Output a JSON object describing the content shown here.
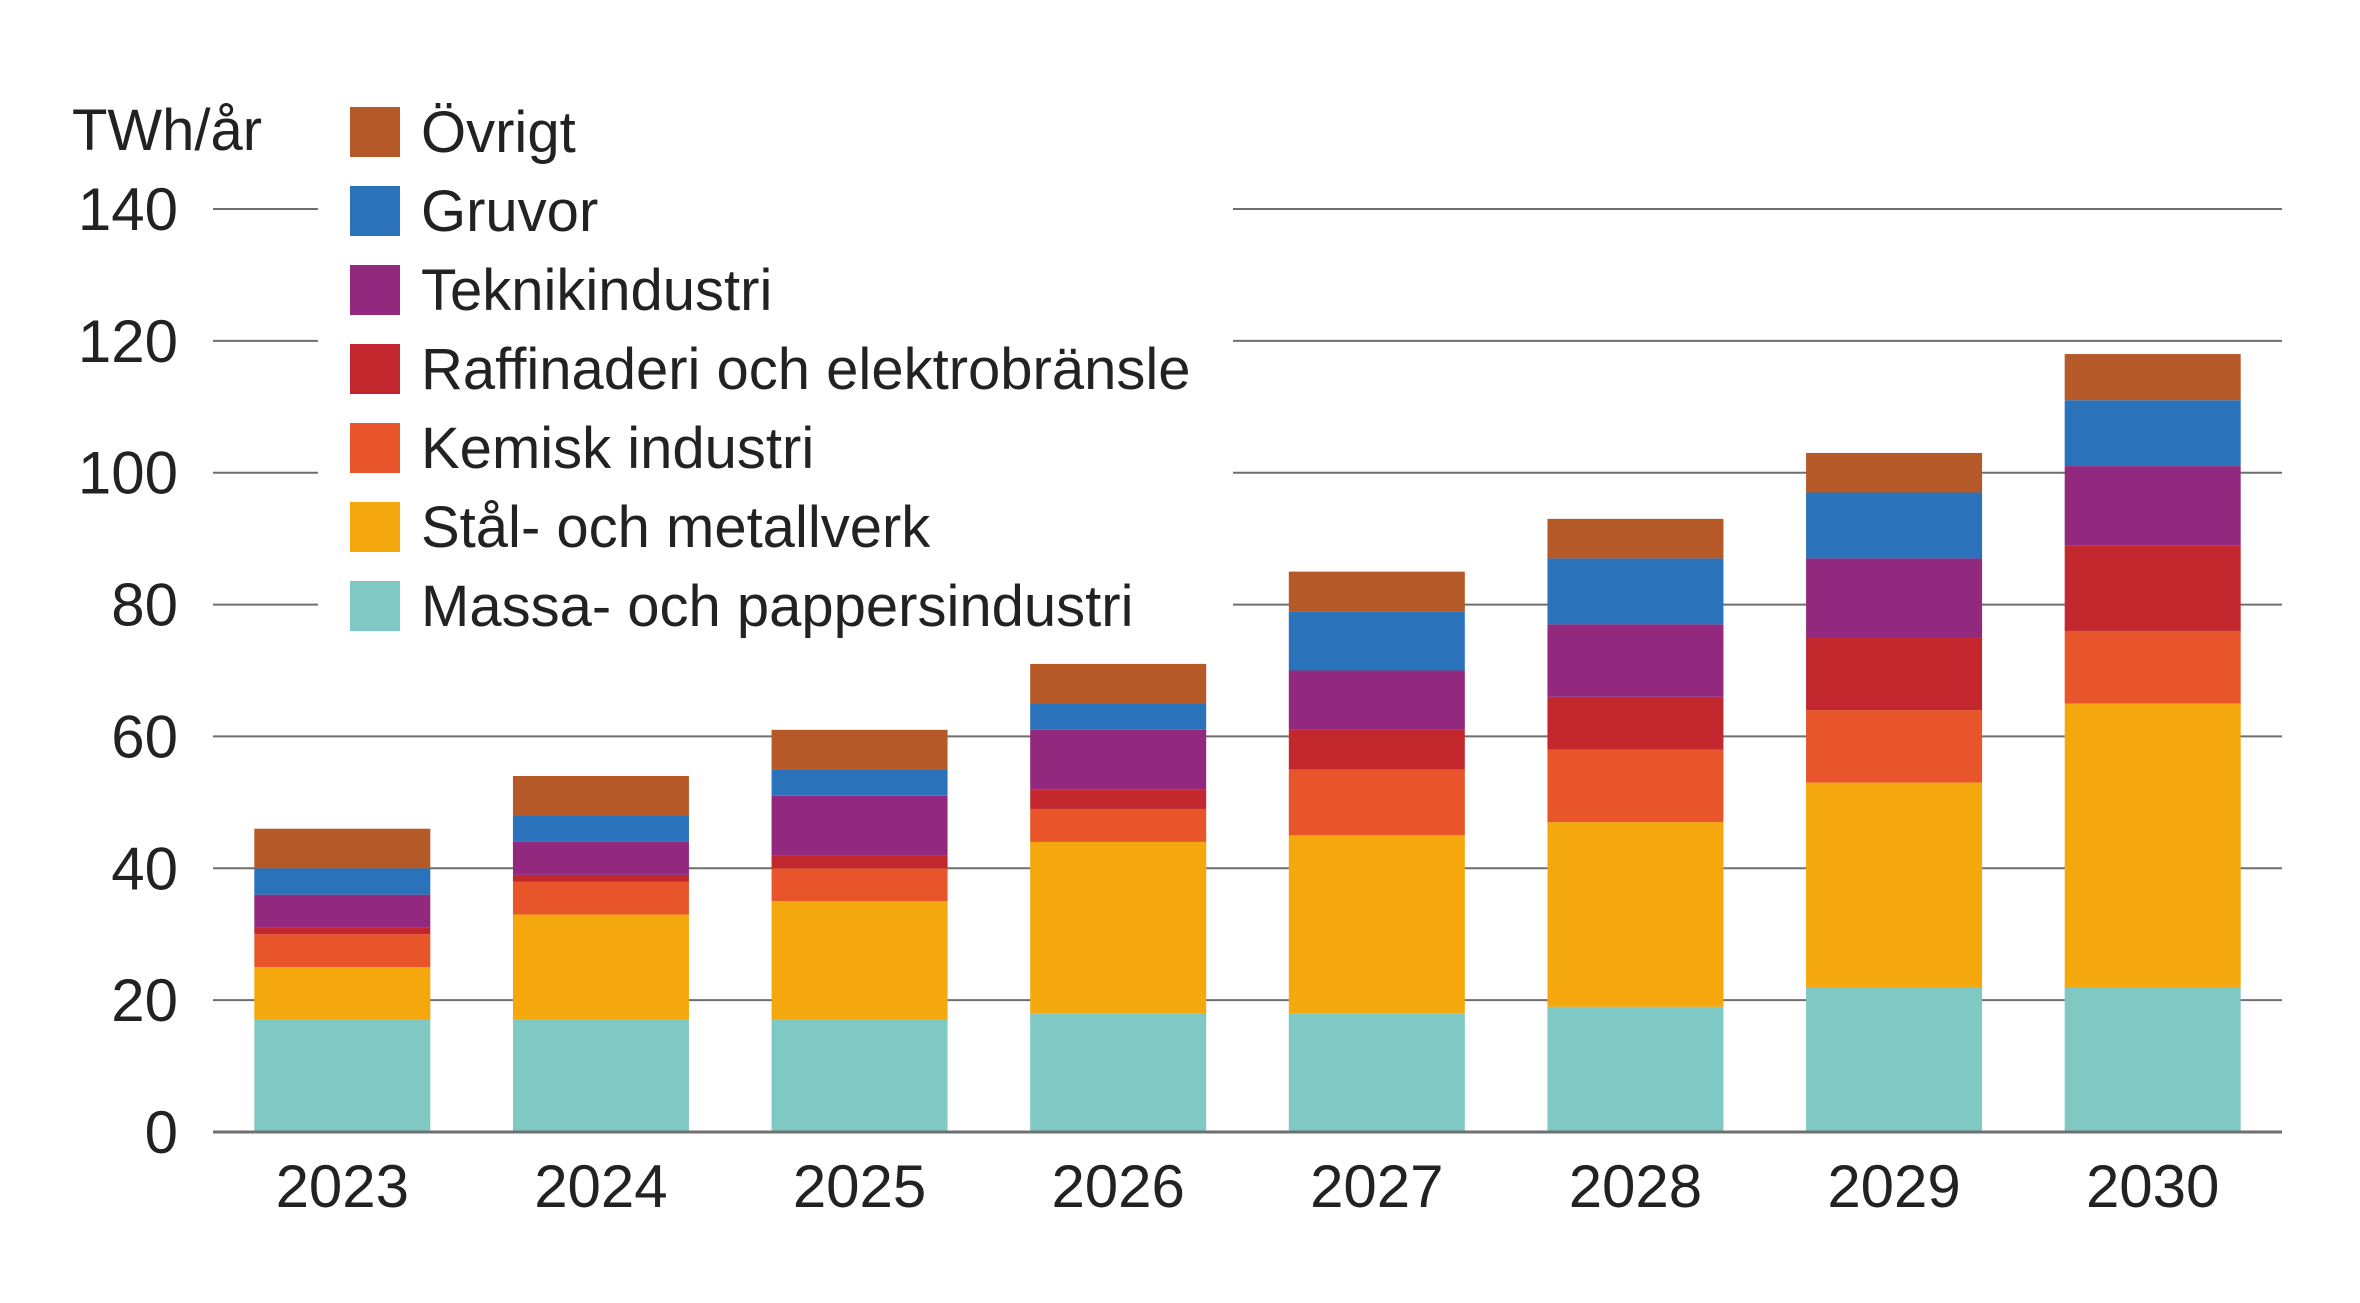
{
  "chart_data": {
    "type": "bar",
    "stacked": true,
    "unit_label": "TWh/år",
    "categories": [
      "2023",
      "2024",
      "2025",
      "2026",
      "2027",
      "2028",
      "2029",
      "2030"
    ],
    "ylim": [
      0,
      140
    ],
    "yticks": [
      0,
      20,
      40,
      60,
      80,
      100,
      120,
      140
    ],
    "grid": true,
    "legend_position": "top-left",
    "series": [
      {
        "name": "Massa- och pappersindustri",
        "color": "#80c8c3",
        "values": [
          17,
          17,
          17,
          18,
          18,
          19,
          22,
          22
        ]
      },
      {
        "name": "Stål- och metallverk",
        "color": "#f4a80e",
        "values": [
          8,
          16,
          18,
          26,
          27,
          28,
          31,
          43
        ]
      },
      {
        "name": "Kemisk industri",
        "color": "#e8552a",
        "values": [
          5,
          5,
          5,
          5,
          10,
          11,
          11,
          11
        ]
      },
      {
        "name": "Raffinaderi och elektrobränsle",
        "color": "#c1272d",
        "values": [
          1,
          1,
          2,
          3,
          6,
          8,
          11,
          13
        ]
      },
      {
        "name": "Teknikindustri",
        "color": "#93297f",
        "values": [
          5,
          5,
          9,
          9,
          9,
          11,
          12,
          12
        ]
      },
      {
        "name": "Gruvor",
        "color": "#2a72ba",
        "values": [
          4,
          4,
          4,
          4,
          9,
          10,
          10,
          10
        ]
      },
      {
        "name": "Övrigt",
        "color": "#b65929",
        "values": [
          6,
          6,
          6,
          6,
          6,
          6,
          6,
          7
        ]
      }
    ]
  }
}
